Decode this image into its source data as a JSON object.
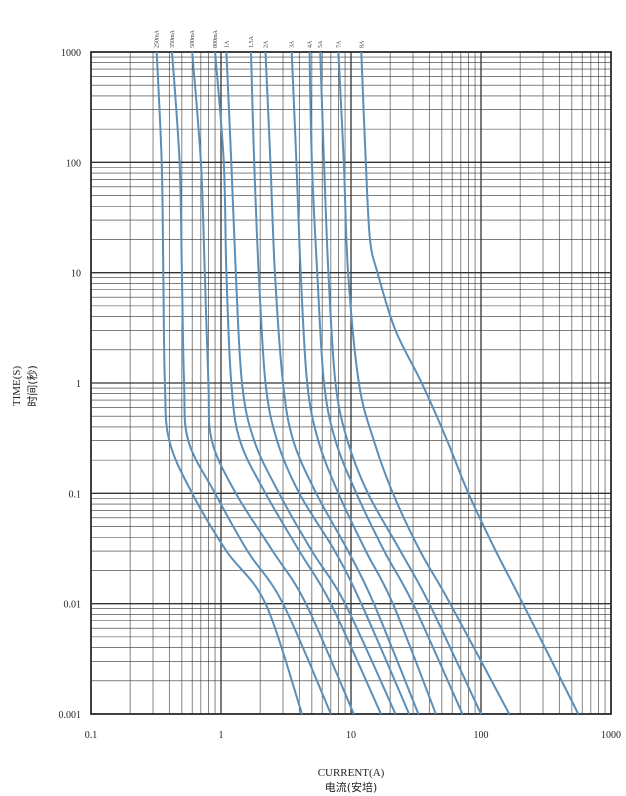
{
  "chart_data": {
    "type": "line",
    "title": "",
    "xlabel": "CURRENT(A)",
    "xlabel_zh": "电流(安培)",
    "ylabel": "TIME(S)",
    "ylabel_zh": "时间(秒)",
    "x_scale": "log",
    "y_scale": "log",
    "xlim": [
      0.1,
      1000
    ],
    "ylim": [
      0.001,
      1000
    ],
    "x_ticks": [
      "0.1",
      "1",
      "10",
      "100",
      "1000"
    ],
    "y_ticks": [
      "1000",
      "100",
      "10",
      "1",
      "0.1",
      "0.01",
      "0.001"
    ],
    "grid": true,
    "series_color": "#5b8fba",
    "grid_color": "#333333",
    "series": [
      {
        "name": "250mA",
        "points": [
          [
            0.32,
            1000
          ],
          [
            0.35,
            100
          ],
          [
            0.36,
            10
          ],
          [
            0.37,
            1
          ],
          [
            0.4,
            0.3
          ],
          [
            0.6,
            0.1
          ],
          [
            1.1,
            0.03
          ],
          [
            2.2,
            0.01
          ],
          [
            4.2,
            0.001
          ]
        ]
      },
      {
        "name": "350mA",
        "points": [
          [
            0.42,
            1000
          ],
          [
            0.48,
            100
          ],
          [
            0.5,
            10
          ],
          [
            0.52,
            1
          ],
          [
            0.56,
            0.3
          ],
          [
            0.9,
            0.1
          ],
          [
            1.6,
            0.03
          ],
          [
            3.0,
            0.01
          ],
          [
            7.0,
            0.001
          ]
        ]
      },
      {
        "name": "500mA",
        "points": [
          [
            0.6,
            1000
          ],
          [
            0.7,
            100
          ],
          [
            0.75,
            10
          ],
          [
            0.8,
            1
          ],
          [
            0.85,
            0.3
          ],
          [
            1.3,
            0.1
          ],
          [
            2.5,
            0.03
          ],
          [
            4.5,
            0.01
          ],
          [
            10.5,
            0.001
          ]
        ]
      },
      {
        "name": "800mA",
        "points": [
          [
            0.9,
            1000
          ],
          [
            1.05,
            100
          ],
          [
            1.1,
            10
          ],
          [
            1.2,
            1
          ],
          [
            1.4,
            0.3
          ],
          [
            2.2,
            0.1
          ],
          [
            4.0,
            0.03
          ],
          [
            7.0,
            0.01
          ],
          [
            17,
            0.001
          ]
        ]
      },
      {
        "name": "1A",
        "points": [
          [
            1.1,
            1000
          ],
          [
            1.2,
            100
          ],
          [
            1.3,
            10
          ],
          [
            1.45,
            1
          ],
          [
            1.8,
            0.3
          ],
          [
            2.8,
            0.1
          ],
          [
            5.0,
            0.03
          ],
          [
            9.0,
            0.01
          ],
          [
            22,
            0.001
          ]
        ]
      },
      {
        "name": "1.5A",
        "points": [
          [
            1.7,
            1000
          ],
          [
            1.8,
            100
          ],
          [
            1.95,
            10
          ],
          [
            2.2,
            1
          ],
          [
            2.7,
            0.3
          ],
          [
            4.0,
            0.1
          ],
          [
            7.5,
            0.03
          ],
          [
            12,
            0.01
          ],
          [
            28,
            0.001
          ]
        ]
      },
      {
        "name": "2A",
        "points": [
          [
            2.2,
            1000
          ],
          [
            2.4,
            100
          ],
          [
            2.6,
            10
          ],
          [
            3.0,
            1
          ],
          [
            3.6,
            0.3
          ],
          [
            5.4,
            0.1
          ],
          [
            9.5,
            0.03
          ],
          [
            15,
            0.01
          ],
          [
            33,
            0.001
          ]
        ]
      },
      {
        "name": "3A",
        "points": [
          [
            3.5,
            1000
          ],
          [
            3.8,
            100
          ],
          [
            4.1,
            10
          ],
          [
            4.6,
            1
          ],
          [
            5.6,
            0.3
          ],
          [
            8.0,
            0.1
          ],
          [
            13,
            0.03
          ],
          [
            21,
            0.01
          ],
          [
            45,
            0.001
          ]
        ]
      },
      {
        "name": "4A",
        "points": [
          [
            4.8,
            1000
          ],
          [
            5.0,
            100
          ],
          [
            5.5,
            10
          ],
          [
            6.2,
            1
          ],
          [
            7.6,
            0.3
          ],
          [
            11,
            0.1
          ],
          [
            18,
            0.03
          ],
          [
            30,
            0.01
          ],
          [
            72,
            0.001
          ]
        ]
      },
      {
        "name": "5A",
        "points": [
          [
            5.8,
            1000
          ],
          [
            6.2,
            100
          ],
          [
            6.7,
            10
          ],
          [
            7.6,
            1
          ],
          [
            9.4,
            0.3
          ],
          [
            13.5,
            0.1
          ],
          [
            24,
            0.03
          ],
          [
            40,
            0.01
          ],
          [
            100,
            0.001
          ]
        ]
      },
      {
        "name": "7A",
        "points": [
          [
            8.0,
            1000
          ],
          [
            8.8,
            100
          ],
          [
            9.5,
            10
          ],
          [
            11.5,
            1
          ],
          [
            15,
            0.3
          ],
          [
            21,
            0.1
          ],
          [
            34,
            0.03
          ],
          [
            58,
            0.01
          ],
          [
            165,
            0.001
          ]
        ]
      },
      {
        "name": "8A",
        "points": [
          [
            12,
            1000
          ],
          [
            13,
            100
          ],
          [
            14,
            20
          ],
          [
            16,
            10
          ],
          [
            22,
            3
          ],
          [
            35,
            1
          ],
          [
            55,
            0.3
          ],
          [
            80,
            0.1
          ],
          [
            130,
            0.03
          ],
          [
            210,
            0.01
          ],
          [
            560,
            0.001
          ]
        ]
      }
    ]
  }
}
